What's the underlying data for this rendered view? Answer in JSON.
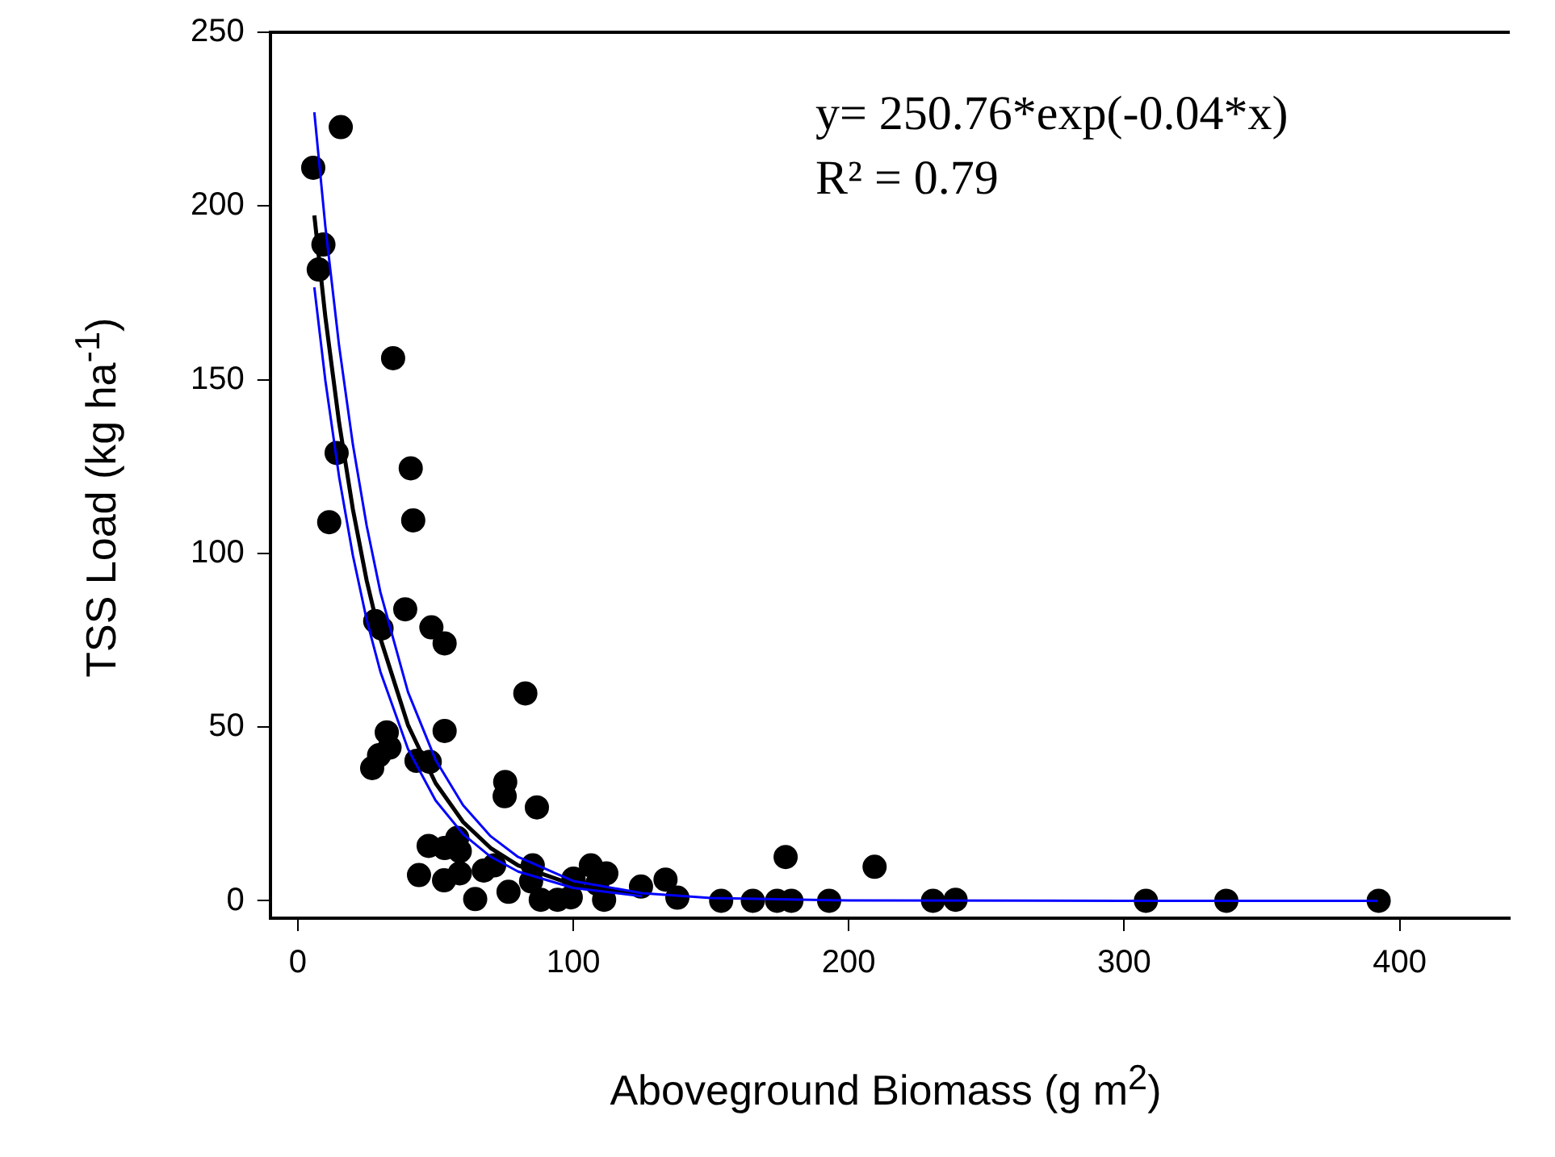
{
  "chart_data": {
    "type": "scatter",
    "xlabel": "Aboveground Biomass (g m$^{2}$)",
    "ylabel": "TSS Load (kg ha$^{-1}$)",
    "annotations": [
      "y= 250.76*exp(-0.04*x)",
      "R² = 0.79"
    ],
    "xlim": [
      -10,
      440
    ],
    "ylim": [
      -5,
      250
    ],
    "xticks": [
      0,
      100,
      200,
      300,
      400
    ],
    "yticks": [
      0,
      50,
      100,
      150,
      200,
      250
    ],
    "grid": false,
    "legend": false,
    "marker": "circle",
    "series": [
      {
        "color": "#000000",
        "x": [
          15.6,
          5.6,
          9.3,
          7.6,
          34.6,
          14.1,
          41,
          11.4,
          41.9,
          39,
          28.1,
          30.4,
          48.5,
          53.3,
          82.6,
          32.3,
          53.3,
          33.3,
          29.5,
          27,
          43.1,
          47.9,
          75.3,
          75.1,
          86.8,
          47.5,
          57.9,
          53.3,
          58.8,
          44,
          53.1,
          58.8,
          67.5,
          71.3,
          64.4,
          76.5,
          85.3,
          84.7,
          88.2,
          94.3,
          99.1,
          100.1,
          106.4,
          112,
          108.7,
          111.2,
          124.6,
          133.5,
          137.8,
          153.7,
          165.2,
          174,
          179.2,
          177.1,
          192.9,
          209.4,
          230.6,
          238.8,
          307.9,
          337.1,
          392.4
        ],
        "values": [
          222.7,
          211,
          188.9,
          181.7,
          156.2,
          128.9,
          124.5,
          109,
          109.5,
          83.9,
          80.5,
          78.4,
          78.7,
          74.1,
          59.7,
          48.5,
          48.9,
          44.1,
          41.9,
          38.2,
          40.3,
          40,
          34.2,
          30.1,
          26.9,
          15.8,
          18.1,
          15.2,
          14.3,
          7.4,
          5.9,
          7.9,
          8.7,
          10.2,
          0.5,
          2.6,
          10.2,
          5.6,
          0.3,
          0.3,
          1,
          6.4,
          10.2,
          7.9,
          4.9,
          0.3,
          4.1,
          6.1,
          0.9,
          0,
          0,
          0,
          0,
          12.6,
          0,
          9.8,
          0,
          0.3,
          0,
          0,
          0
        ]
      },
      {
        "type": "line",
        "color": "#000000",
        "marker": "none",
        "x": [
          6,
          10,
          15,
          20,
          25,
          30,
          40,
          50,
          60,
          70,
          80,
          100,
          125
        ],
        "values": [
          197.3,
          168.1,
          137.6,
          112.7,
          92.2,
          75.5,
          50.6,
          33.9,
          22.7,
          15.2,
          10.2,
          4.6,
          1.7
        ]
      },
      {
        "type": "line",
        "color": "#0000ff",
        "marker": "none",
        "x": [
          6,
          10,
          15,
          20,
          25,
          30,
          40,
          50,
          60,
          70,
          80,
          100,
          125,
          150,
          200,
          300,
          392
        ],
        "values": [
          227,
          194.1,
          159.7,
          131.3,
          108,
          88.8,
          60.1,
          40.6,
          27.5,
          18.6,
          12.6,
          5.7,
          2.2,
          0.8,
          0.1,
          0,
          0
        ]
      },
      {
        "type": "line",
        "color": "#0000ff",
        "marker": "none",
        "x": [
          6,
          10,
          15,
          20,
          25,
          30,
          40,
          50,
          60,
          70,
          80,
          100,
          125
        ],
        "values": [
          176.6,
          149.8,
          122,
          99.4,
          80.9,
          65.9,
          43.7,
          28.9,
          19.2,
          12.7,
          8.4,
          3.7,
          1.3
        ]
      }
    ]
  }
}
